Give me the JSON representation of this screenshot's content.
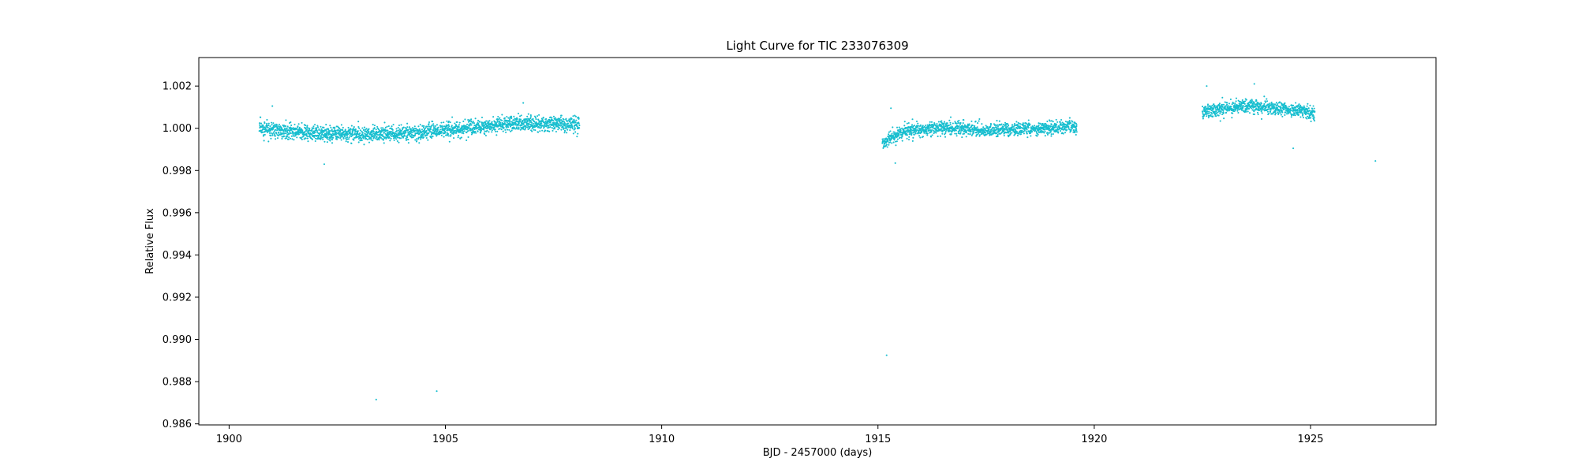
{
  "chart_data": {
    "type": "scatter",
    "title": "Light Curve for TIC 233076309",
    "xlabel": "BJD - 2457000 (days)",
    "ylabel": "Relative Flux",
    "xlim": [
      1899.3,
      1927.9
    ],
    "ylim": [
      0.98595,
      1.00335
    ],
    "xticks": [
      1900,
      1905,
      1910,
      1915,
      1920,
      1925
    ],
    "xtick_labels": [
      "1900",
      "1905",
      "1910",
      "1915",
      "1920",
      "1925"
    ],
    "yticks": [
      0.986,
      0.988,
      0.99,
      0.992,
      0.994,
      0.996,
      0.998,
      1.0,
      1.002
    ],
    "ytick_labels": [
      "0.986",
      "0.988",
      "0.990",
      "0.992",
      "0.994",
      "0.996",
      "0.998",
      "1.000",
      "1.002"
    ],
    "grid": false,
    "legend": "none",
    "marker_color": "#17becf",
    "segments": [
      {
        "x_start": 1900.7,
        "x_end": 1908.1,
        "trend": [
          [
            1900.7,
            0.99995
          ],
          [
            1902.5,
            0.9997
          ],
          [
            1904.2,
            0.99975
          ],
          [
            1905.5,
            1.0
          ],
          [
            1906.5,
            1.00025
          ],
          [
            1908.1,
            1.0002
          ]
        ],
        "scatter": 0.00033
      },
      {
        "x_start": 1915.1,
        "x_end": 1919.6,
        "trend": [
          [
            1915.1,
            0.99935
          ],
          [
            1915.6,
            0.99985
          ],
          [
            1916.5,
            1.00005
          ],
          [
            1917.5,
            0.9999
          ],
          [
            1918.5,
            0.99995
          ],
          [
            1919.6,
            1.0001
          ]
        ],
        "scatter": 0.0003
      },
      {
        "x_start": 1922.5,
        "x_end": 1925.1,
        "trend": [
          [
            1922.5,
            1.0008
          ],
          [
            1923.5,
            1.00105
          ],
          [
            1924.3,
            1.00095
          ],
          [
            1925.1,
            1.0007
          ]
        ],
        "scatter": 0.0003
      }
    ],
    "outliers": [
      {
        "x": 1903.4,
        "y": 0.98715
      },
      {
        "x": 1904.8,
        "y": 0.98755
      },
      {
        "x": 1915.2,
        "y": 0.98925
      },
      {
        "x": 1926.5,
        "y": 0.99845
      },
      {
        "x": 1901.0,
        "y": 1.00105
      },
      {
        "x": 1902.2,
        "y": 0.9983
      },
      {
        "x": 1906.8,
        "y": 1.0012
      },
      {
        "x": 1915.3,
        "y": 1.00095
      },
      {
        "x": 1915.4,
        "y": 0.99835
      },
      {
        "x": 1922.6,
        "y": 1.002
      },
      {
        "x": 1923.7,
        "y": 1.0021
      },
      {
        "x": 1924.6,
        "y": 0.99905
      }
    ]
  }
}
